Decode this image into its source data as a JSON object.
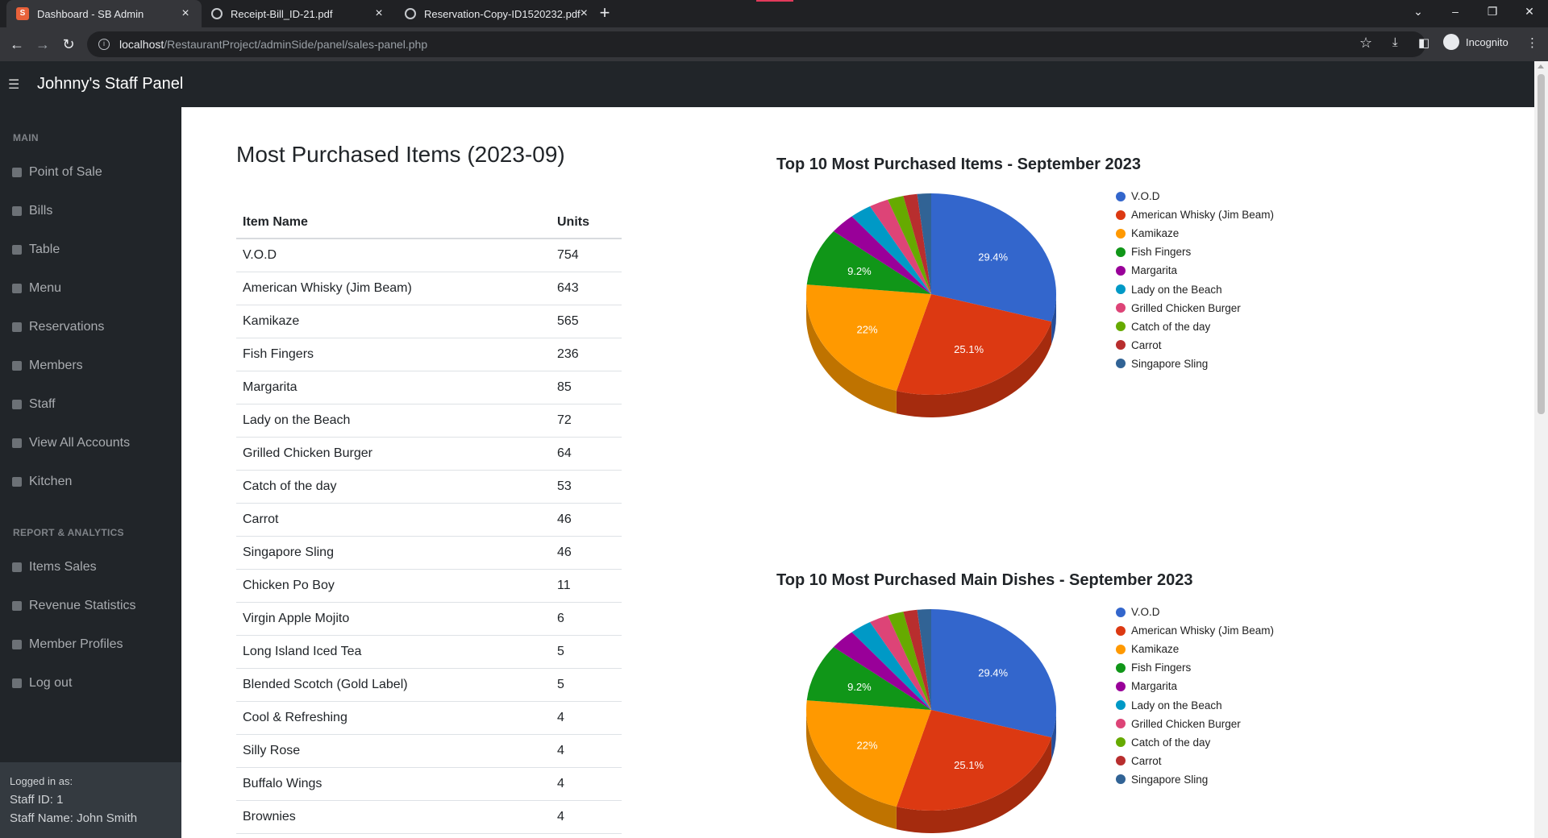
{
  "browser": {
    "tabs": [
      {
        "label": "Dashboard - SB Admin",
        "active": true,
        "icon": "sb-admin-favicon"
      },
      {
        "label": "Receipt-Bill_ID-21.pdf",
        "active": false,
        "icon": "globe-icon"
      },
      {
        "label": "Reservation-Copy-ID1520232.pdf",
        "active": false,
        "icon": "globe-icon"
      }
    ],
    "url_host": "localhost",
    "url_path": "/RestaurantProject/adminSide/panel/sales-panel.php",
    "profile_label": "Incognito"
  },
  "app": {
    "brand": "Johnny's Staff Panel",
    "sidebar": {
      "main_heading": "MAIN",
      "main_items": [
        "Point of Sale",
        "Bills",
        "Table",
        "Menu",
        "Reservations",
        "Members",
        "Staff",
        "View All Accounts",
        "Kitchen"
      ],
      "report_heading": "REPORT & ANALYTICS",
      "report_items": [
        "Items Sales",
        "Revenue Statistics",
        "Member Profiles",
        "Log out"
      ],
      "footer": {
        "logged_in": "Logged in as:",
        "staff_id": "Staff ID: 1",
        "staff_name": "Staff Name: John Smith"
      }
    }
  },
  "main": {
    "title": "Most Purchased Items (2023-09)",
    "table": {
      "headers": [
        "Item Name",
        "Units"
      ],
      "rows": [
        [
          "V.O.D",
          "754"
        ],
        [
          "American Whisky (Jim Beam)",
          "643"
        ],
        [
          "Kamikaze",
          "565"
        ],
        [
          "Fish Fingers",
          "236"
        ],
        [
          "Margarita",
          "85"
        ],
        [
          "Lady on the Beach",
          "72"
        ],
        [
          "Grilled Chicken Burger",
          "64"
        ],
        [
          "Catch of the day",
          "53"
        ],
        [
          "Carrot",
          "46"
        ],
        [
          "Singapore Sling",
          "46"
        ],
        [
          "Chicken Po Boy",
          "11"
        ],
        [
          "Virgin Apple Mojito",
          "6"
        ],
        [
          "Long Island Iced Tea",
          "5"
        ],
        [
          "Blended Scotch (Gold Label)",
          "5"
        ],
        [
          "Cool & Refreshing",
          "4"
        ],
        [
          "Silly Rose",
          "4"
        ],
        [
          "Buffalo Wings",
          "4"
        ],
        [
          "Brownies",
          "4"
        ]
      ]
    }
  },
  "chart_data": [
    {
      "type": "pie",
      "title": "Top 10 Most Purchased Items - September 2023",
      "categories": [
        "V.O.D",
        "American Whisky (Jim Beam)",
        "Kamikaze",
        "Fish Fingers",
        "Margarita",
        "Lady on the Beach",
        "Grilled Chicken Burger",
        "Catch of the day",
        "Carrot",
        "Singapore Sling"
      ],
      "values": [
        754,
        643,
        565,
        236,
        85,
        72,
        64,
        53,
        46,
        46
      ],
      "slice_labels": [
        "29.4%",
        "25.1%",
        "22%",
        "9.2%",
        "",
        "",
        "",
        "",
        "",
        ""
      ],
      "colors": [
        "#3366cc",
        "#dc3912",
        "#ff9900",
        "#109618",
        "#990099",
        "#0099c6",
        "#dd4477",
        "#66aa00",
        "#b82e2e",
        "#316395"
      ],
      "legend": "right",
      "is3D": true
    },
    {
      "type": "pie",
      "title": "Top 10 Most Purchased Main Dishes - September 2023",
      "categories": [
        "V.O.D",
        "American Whisky (Jim Beam)",
        "Kamikaze",
        "Fish Fingers",
        "Margarita",
        "Lady on the Beach",
        "Grilled Chicken Burger",
        "Catch of the day",
        "Carrot",
        "Singapore Sling"
      ],
      "values": [
        754,
        643,
        565,
        236,
        85,
        72,
        64,
        53,
        46,
        46
      ],
      "slice_labels": [
        "29.4%",
        "25.1%",
        "22%",
        "9.2%",
        "",
        "",
        "",
        "",
        "",
        ""
      ],
      "colors": [
        "#3366cc",
        "#dc3912",
        "#ff9900",
        "#109618",
        "#990099",
        "#0099c6",
        "#dd4477",
        "#66aa00",
        "#b82e2e",
        "#316395"
      ],
      "legend": "right",
      "is3D": true
    }
  ]
}
